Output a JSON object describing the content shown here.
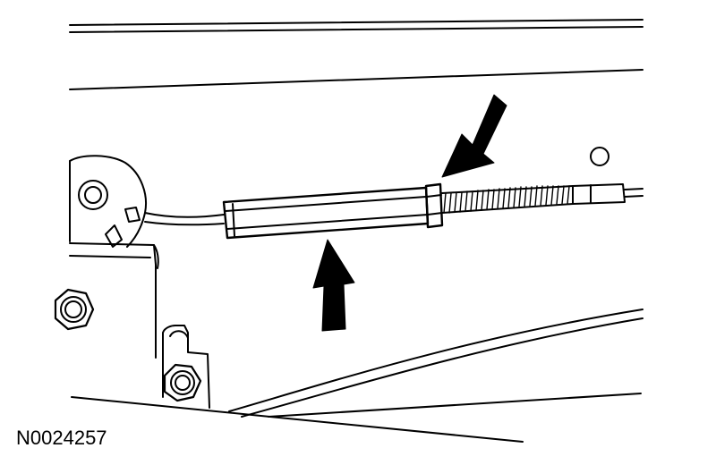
{
  "figure": {
    "id": "N0024257"
  },
  "colors": {
    "ink": "#000000",
    "paper": "#ffffff"
  }
}
